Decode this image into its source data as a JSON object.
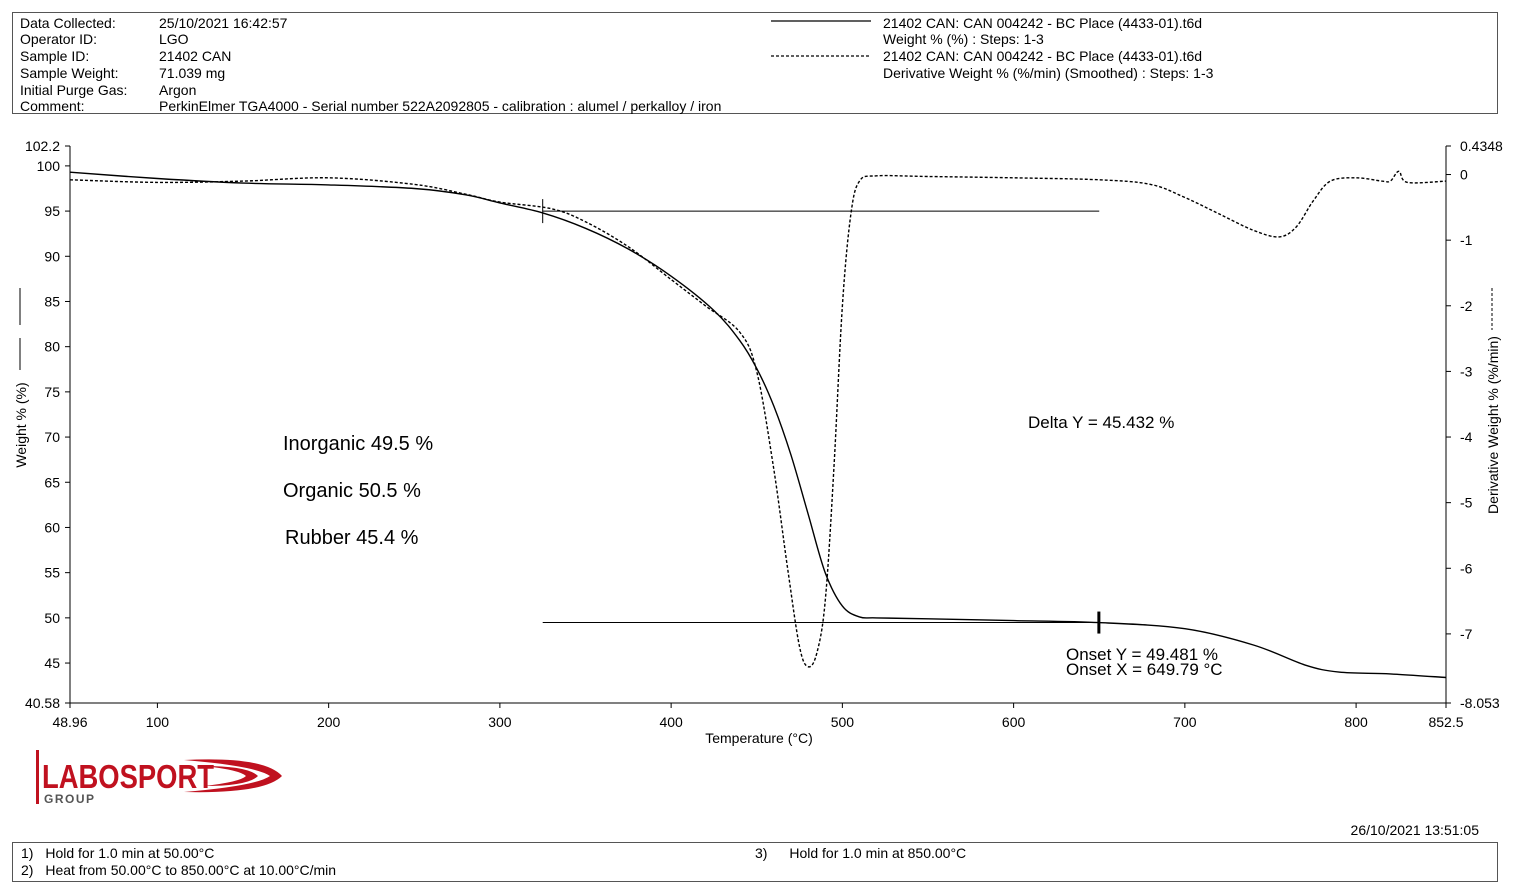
{
  "header": {
    "rows": [
      {
        "label": "Data Collected:",
        "value": "25/10/2021 16:42:57"
      },
      {
        "label": "Operator ID:",
        "value": "LGO"
      },
      {
        "label": "Sample ID:",
        "value": "21402 CAN"
      },
      {
        "label": "Sample Weight:",
        "value": "71.039 mg"
      },
      {
        "label": "Initial Purge Gas:",
        "value": "Argon"
      },
      {
        "label": "Comment:",
        "value": "PerkinElmer TGA4000 - Serial number 522A2092805 - calibration : alumel / perkalloy / iron"
      }
    ],
    "legend": [
      {
        "line1": "21402 CAN: CAN 004242 - BC Place (4433-01).t6d",
        "line2": "Weight % (%) : Steps: 1-3",
        "style": "solid"
      },
      {
        "line1": "21402 CAN: CAN 004242 - BC Place (4433-01).t6d",
        "line2": "Derivative Weight % (%/min) (Smoothed) : Steps: 1-3",
        "style": "dashed"
      }
    ]
  },
  "chart_data": {
    "type": "line",
    "xlabel": "Temperature (°C)",
    "ylabel": "Weight % (%)",
    "y2label": "Derivative Weight % (%/min)",
    "xlim": [
      48.96,
      852.5
    ],
    "ylim": [
      40.58,
      102.2
    ],
    "y2lim": [
      -8.053,
      0.4348
    ],
    "x_ticks": [
      "48.96",
      "100",
      "200",
      "300",
      "400",
      "500",
      "600",
      "700",
      "800",
      "852.5"
    ],
    "x_tick_values": [
      48.96,
      100,
      200,
      300,
      400,
      500,
      600,
      700,
      800,
      852.5
    ],
    "y_ticks": [
      "40.58",
      "45",
      "50",
      "55",
      "60",
      "65",
      "70",
      "75",
      "80",
      "85",
      "90",
      "95",
      "100",
      "102.2"
    ],
    "y_tick_values": [
      40.58,
      45,
      50,
      55,
      60,
      65,
      70,
      75,
      80,
      85,
      90,
      95,
      100,
      102.2
    ],
    "y2_ticks": [
      "-8.053",
      "-7",
      "-6",
      "-5",
      "-4",
      "-3",
      "-2",
      "-1",
      "0",
      "0.4348"
    ],
    "y2_tick_values": [
      -8.053,
      -7,
      -6,
      -5,
      -4,
      -3,
      -2,
      -1,
      0,
      0.4348
    ],
    "series": [
      {
        "axis": "left",
        "style": "solid",
        "x": [
          48.96,
          100,
          150,
          200,
          250,
          280,
          300,
          325,
          350,
          375,
          400,
          425,
          440,
          450,
          460,
          470,
          480,
          490,
          500,
          510,
          520,
          550,
          600,
          650,
          700,
          740,
          770,
          790,
          820,
          852.5
        ],
        "values": [
          99.3,
          98.6,
          98.1,
          97.9,
          97.5,
          96.8,
          95.9,
          94.8,
          93.1,
          90.8,
          87.8,
          84.0,
          80.7,
          77.6,
          73.4,
          68.0,
          61.5,
          55.0,
          51.3,
          50.1,
          50.0,
          49.9,
          49.7,
          49.48,
          48.8,
          47.0,
          44.8,
          44.0,
          43.8,
          43.4
        ]
      },
      {
        "axis": "right",
        "style": "dashed",
        "x": [
          48.96,
          100,
          150,
          200,
          250,
          280,
          300,
          330,
          350,
          375,
          400,
          420,
          440,
          450,
          460,
          468,
          475,
          480,
          485,
          490,
          495,
          500,
          505,
          510,
          520,
          550,
          600,
          650,
          680,
          700,
          720,
          740,
          755,
          765,
          775,
          785,
          800,
          815,
          820,
          825,
          830,
          852.5
        ],
        "values": [
          -0.08,
          -0.12,
          -0.1,
          -0.05,
          -0.15,
          -0.3,
          -0.42,
          -0.52,
          -0.72,
          -1.1,
          -1.6,
          -2.0,
          -2.4,
          -3.0,
          -4.5,
          -6.0,
          -7.2,
          -7.5,
          -7.3,
          -6.5,
          -4.5,
          -2.0,
          -0.6,
          -0.1,
          -0.02,
          -0.03,
          -0.05,
          -0.08,
          -0.15,
          -0.35,
          -0.6,
          -0.85,
          -0.95,
          -0.8,
          -0.4,
          -0.1,
          -0.05,
          -0.1,
          -0.1,
          0.05,
          -0.12,
          -0.1
        ]
      }
    ],
    "annotations": {
      "notes": [
        "Inorganic 49.5 %",
        "Organic 50.5 %",
        "Rubber 45.4 %"
      ],
      "delta": "Delta Y = 45.432 %",
      "onset_y": "Onset Y = 49.481 %",
      "onset_x": "Onset X = 649.79 °C",
      "upper_level": {
        "x1": 325,
        "x2": 650,
        "y": 95.0
      },
      "lower_level": {
        "x1": 325,
        "x2": 650,
        "y": 49.48
      },
      "onset_marker_x": 649.79,
      "start_marker_x": 325
    }
  },
  "logo": {
    "name": "LABOSPORT",
    "sub": "GROUP",
    "color": "#c0111f"
  },
  "print_timestamp": "26/10/2021 13:51:05",
  "footer": {
    "steps": [
      {
        "num": "1)",
        "text": "Hold for 1.0 min at 50.00°C"
      },
      {
        "num": "2)",
        "text": "Heat from 50.00°C to 850.00°C at 10.00°C/min"
      },
      {
        "num": "3)",
        "text": "Hold for 1.0 min at 850.00°C"
      }
    ]
  }
}
